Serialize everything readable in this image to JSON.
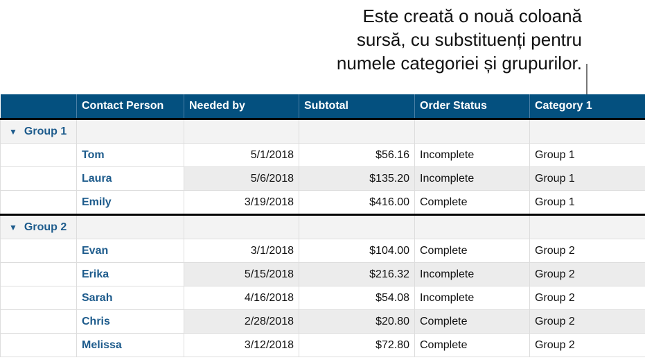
{
  "callout": {
    "lines": [
      "Este creată o nouă coloană",
      "sursă, cu substituenți pentru",
      "numele categoriei și grupurilor."
    ]
  },
  "table": {
    "headers": [
      "",
      "Contact Person",
      "Needed by",
      "Subtotal",
      "Order Status",
      "Category 1"
    ],
    "groups": [
      {
        "label": "Group 1",
        "rows": [
          {
            "contact": "Tom",
            "needed": "5/1/2018",
            "subtotal": "$56.16",
            "status": "Incomplete",
            "category": "Group 1"
          },
          {
            "contact": "Laura",
            "needed": "5/6/2018",
            "subtotal": "$135.20",
            "status": "Incomplete",
            "category": "Group 1"
          },
          {
            "contact": "Emily",
            "needed": "3/19/2018",
            "subtotal": "$416.00",
            "status": "Complete",
            "category": "Group 1"
          }
        ]
      },
      {
        "label": "Group 2",
        "rows": [
          {
            "contact": "Evan",
            "needed": "3/1/2018",
            "subtotal": "$104.00",
            "status": "Complete",
            "category": "Group 2"
          },
          {
            "contact": "Erika",
            "needed": "5/15/2018",
            "subtotal": "$216.32",
            "status": "Incomplete",
            "category": "Group 2"
          },
          {
            "contact": "Sarah",
            "needed": "4/16/2018",
            "subtotal": "$54.08",
            "status": "Incomplete",
            "category": "Group 2"
          },
          {
            "contact": "Chris",
            "needed": "2/28/2018",
            "subtotal": "$20.80",
            "status": "Complete",
            "category": "Group 2"
          },
          {
            "contact": "Melissa",
            "needed": "3/12/2018",
            "subtotal": "$72.80",
            "status": "Complete",
            "category": "Group 2"
          }
        ]
      }
    ]
  },
  "colors": {
    "header_bg": "#04507f",
    "name_text": "#1d5b8c"
  }
}
